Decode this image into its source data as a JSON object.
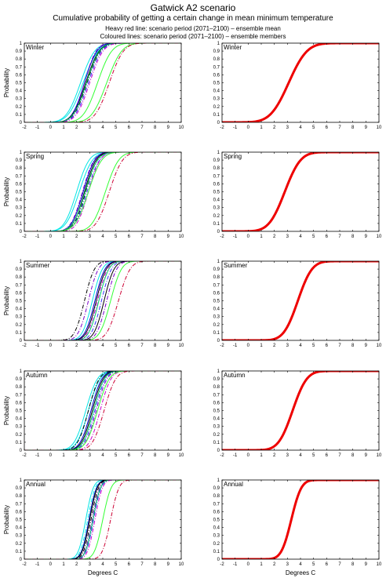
{
  "header": {
    "title": "Gatwick A2 scenario",
    "subtitle": "Cumulative probability of getting a certain change in mean minimum temperature",
    "note_line1": "Heavy red line: scenario period (2071–2100) – ensemble mean",
    "note_line2": "Coloured lines: scenario period (2071–2100) – ensemble members"
  },
  "chart_data": [
    {
      "type": "line",
      "panel": "Winter ensemble members",
      "title": "Winter",
      "xlabel": "",
      "ylabel": "Probability",
      "xlim": [
        -2,
        10
      ],
      "ylim": [
        0,
        1
      ],
      "xticks": [
        "-2",
        "-1",
        "0",
        "1",
        "2",
        "3",
        "4",
        "5",
        "6",
        "7",
        "8",
        "9",
        "10"
      ],
      "yticks": [
        "0",
        "0.1",
        "0.2",
        "0.3",
        "0.4",
        "0.5",
        "0.6",
        "0.7",
        "0.8",
        "0.9",
        "1"
      ],
      "series": [
        {
          "color": "#00e5e5",
          "dash": "solid",
          "median": 2.3,
          "spread": 0.85
        },
        {
          "color": "#00e5e5",
          "dash": "solid",
          "median": 2.5,
          "spread": 0.9
        },
        {
          "color": "#0000cc",
          "dash": "solid",
          "median": 2.6,
          "spread": 0.75
        },
        {
          "color": "#000000",
          "dash": "solid",
          "median": 2.7,
          "spread": 0.8
        },
        {
          "color": "#000000",
          "dash": "dashdot",
          "median": 2.8,
          "spread": 0.8
        },
        {
          "color": "#3333ff",
          "dash": "dashdot",
          "median": 2.9,
          "spread": 0.8
        },
        {
          "color": "#7a00cc",
          "dash": "dashdot",
          "median": 2.6,
          "spread": 0.7
        },
        {
          "color": "#00cc66",
          "dash": "solid",
          "median": 2.75,
          "spread": 0.8
        },
        {
          "color": "#cc00cc",
          "dash": "dashdot",
          "median": 3.0,
          "spread": 0.8
        },
        {
          "color": "#33ff33",
          "dash": "solid",
          "median": 3.6,
          "spread": 0.85
        },
        {
          "color": "#33ff33",
          "dash": "solid",
          "median": 4.3,
          "spread": 0.9
        },
        {
          "color": "#cc0033",
          "dash": "dashdot",
          "median": 4.5,
          "spread": 0.85
        }
      ]
    },
    {
      "type": "line",
      "panel": "Winter ensemble mean",
      "title": "Winter",
      "xlabel": "",
      "ylabel": "",
      "xlim": [
        -2,
        10
      ],
      "ylim": [
        0,
        1
      ],
      "xticks": [
        "-2",
        "-1",
        "0",
        "1",
        "2",
        "3",
        "4",
        "5",
        "6",
        "7",
        "8",
        "9",
        "10"
      ],
      "yticks": [
        "0",
        "0.1",
        "0.2",
        "0.3",
        "0.4",
        "0.5",
        "0.6",
        "0.7",
        "0.8",
        "0.9",
        "1"
      ],
      "series": [
        {
          "color": "#ee0000",
          "dash": "solid",
          "median": 3.1,
          "spread": 1.1,
          "heavy": true
        }
      ]
    },
    {
      "type": "line",
      "panel": "Spring ensemble members",
      "title": "Spring",
      "xlabel": "",
      "ylabel": "Probability",
      "xlim": [
        -2,
        10
      ],
      "ylim": [
        0,
        1
      ],
      "xticks": [
        "-2",
        "-1",
        "0",
        "1",
        "2",
        "3",
        "4",
        "5",
        "6",
        "7",
        "8",
        "9",
        "10"
      ],
      "yticks": [
        "0",
        "0.1",
        "0.2",
        "0.3",
        "0.4",
        "0.5",
        "0.6",
        "0.7",
        "0.8",
        "0.9",
        "1"
      ],
      "series": [
        {
          "color": "#00e5e5",
          "dash": "solid",
          "median": 2.0,
          "spread": 0.75
        },
        {
          "color": "#00e5e5",
          "dash": "solid",
          "median": 2.2,
          "spread": 0.8
        },
        {
          "color": "#0000cc",
          "dash": "solid",
          "median": 2.5,
          "spread": 0.7
        },
        {
          "color": "#000000",
          "dash": "solid",
          "median": 2.6,
          "spread": 0.7
        },
        {
          "color": "#000000",
          "dash": "dashdot",
          "median": 2.7,
          "spread": 0.7
        },
        {
          "color": "#3333ff",
          "dash": "dashdot",
          "median": 2.8,
          "spread": 0.75
        },
        {
          "color": "#7a00cc",
          "dash": "dashdot",
          "median": 2.45,
          "spread": 0.7
        },
        {
          "color": "#cc00cc",
          "dash": "dashdot",
          "median": 2.9,
          "spread": 0.7
        },
        {
          "color": "#00cc66",
          "dash": "solid",
          "median": 2.65,
          "spread": 0.75
        },
        {
          "color": "#33ff33",
          "dash": "solid",
          "median": 2.9,
          "spread": 0.8
        },
        {
          "color": "#33ff33",
          "dash": "solid",
          "median": 4.2,
          "spread": 0.8
        },
        {
          "color": "#cc0033",
          "dash": "dashdot",
          "median": 4.5,
          "spread": 0.8
        }
      ]
    },
    {
      "type": "line",
      "panel": "Spring ensemble mean",
      "title": "Spring",
      "xlabel": "",
      "ylabel": "",
      "xlim": [
        -2,
        10
      ],
      "ylim": [
        0,
        1
      ],
      "xticks": [
        "-2",
        "-1",
        "0",
        "1",
        "2",
        "3",
        "4",
        "5",
        "6",
        "7",
        "8",
        "9",
        "10"
      ],
      "yticks": [
        "0",
        "0.1",
        "0.2",
        "0.3",
        "0.4",
        "0.5",
        "0.6",
        "0.7",
        "0.8",
        "0.9",
        "1"
      ],
      "series": [
        {
          "color": "#ee0000",
          "dash": "solid",
          "median": 2.8,
          "spread": 0.95,
          "heavy": true
        }
      ]
    },
    {
      "type": "line",
      "panel": "Summer ensemble members",
      "title": "Summer",
      "xlabel": "",
      "ylabel": "Probability",
      "xlim": [
        -2,
        10
      ],
      "ylim": [
        0,
        1
      ],
      "xticks": [
        "-2",
        "-1",
        "0",
        "1",
        "2",
        "3",
        "4",
        "5",
        "6",
        "7",
        "8",
        "9",
        "10"
      ],
      "yticks": [
        "0",
        "0.1",
        "0.2",
        "0.3",
        "0.4",
        "0.5",
        "0.6",
        "0.7",
        "0.8",
        "0.9",
        "1"
      ],
      "series": [
        {
          "color": "#000000",
          "dash": "dashdot",
          "median": 2.6,
          "spread": 0.6
        },
        {
          "color": "#7a00cc",
          "dash": "dashdot",
          "median": 2.9,
          "spread": 0.6
        },
        {
          "color": "#00e5e5",
          "dash": "solid",
          "median": 3.2,
          "spread": 0.6
        },
        {
          "color": "#0000cc",
          "dash": "solid",
          "median": 3.4,
          "spread": 0.6
        },
        {
          "color": "#000000",
          "dash": "solid",
          "median": 3.5,
          "spread": 0.6
        },
        {
          "color": "#cc00cc",
          "dash": "dashdot",
          "median": 3.6,
          "spread": 0.6
        },
        {
          "color": "#00cc66",
          "dash": "solid",
          "median": 3.7,
          "spread": 0.6
        },
        {
          "color": "#3333ff",
          "dash": "dashdot",
          "median": 3.9,
          "spread": 0.6
        },
        {
          "color": "#000000",
          "dash": "solid",
          "median": 4.1,
          "spread": 0.6
        },
        {
          "color": "#7a00cc",
          "dash": "dashdot",
          "median": 4.3,
          "spread": 0.6
        },
        {
          "color": "#33ff33",
          "dash": "solid",
          "median": 4.6,
          "spread": 0.65
        },
        {
          "color": "#cc0033",
          "dash": "dashdot",
          "median": 5.2,
          "spread": 0.7
        }
      ]
    },
    {
      "type": "line",
      "panel": "Summer ensemble mean",
      "title": "Summer",
      "xlabel": "",
      "ylabel": "",
      "xlim": [
        -2,
        10
      ],
      "ylim": [
        0,
        1
      ],
      "xticks": [
        "-2",
        "-1",
        "0",
        "1",
        "2",
        "3",
        "4",
        "5",
        "6",
        "7",
        "8",
        "9",
        "10"
      ],
      "yticks": [
        "0",
        "0.1",
        "0.2",
        "0.3",
        "0.4",
        "0.5",
        "0.6",
        "0.7",
        "0.8",
        "0.9",
        "1"
      ],
      "series": [
        {
          "color": "#ee0000",
          "dash": "solid",
          "median": 3.8,
          "spread": 0.85,
          "heavy": true
        }
      ]
    },
    {
      "type": "line",
      "panel": "Autumn ensemble members",
      "title": "Autumn",
      "xlabel": "",
      "ylabel": "Probability",
      "xlim": [
        -2,
        10
      ],
      "ylim": [
        0,
        1
      ],
      "xticks": [
        "-2",
        "-1",
        "0",
        "1",
        "2",
        "3",
        "4",
        "5",
        "6",
        "7",
        "8",
        "9",
        "10"
      ],
      "yticks": [
        "0",
        "0.1",
        "0.2",
        "0.3",
        "0.4",
        "0.5",
        "0.6",
        "0.7",
        "0.8",
        "0.9",
        "1"
      ],
      "series": [
        {
          "color": "#00e5e5",
          "dash": "solid",
          "median": 2.7,
          "spread": 0.7
        },
        {
          "color": "#00e5e5",
          "dash": "solid",
          "median": 2.9,
          "spread": 0.7
        },
        {
          "color": "#000000",
          "dash": "dashdot",
          "median": 2.9,
          "spread": 0.65
        },
        {
          "color": "#0000cc",
          "dash": "solid",
          "median": 3.1,
          "spread": 0.65
        },
        {
          "color": "#000000",
          "dash": "solid",
          "median": 3.2,
          "spread": 0.65
        },
        {
          "color": "#3333ff",
          "dash": "dashdot",
          "median": 3.4,
          "spread": 0.65
        },
        {
          "color": "#7a00cc",
          "dash": "dashdot",
          "median": 3.5,
          "spread": 0.65
        },
        {
          "color": "#00cc66",
          "dash": "solid",
          "median": 3.3,
          "spread": 0.65
        },
        {
          "color": "#cc00cc",
          "dash": "dashdot",
          "median": 3.8,
          "spread": 0.65
        },
        {
          "color": "#33ff33",
          "dash": "solid",
          "median": 3.6,
          "spread": 0.7
        },
        {
          "color": "#cc0033",
          "dash": "dashdot",
          "median": 4.1,
          "spread": 0.7
        }
      ]
    },
    {
      "type": "line",
      "panel": "Autumn ensemble mean",
      "title": "Autumn",
      "xlabel": "",
      "ylabel": "",
      "xlim": [
        -2,
        10
      ],
      "ylim": [
        0,
        1
      ],
      "xticks": [
        "-2",
        "-1",
        "0",
        "1",
        "2",
        "3",
        "4",
        "5",
        "6",
        "7",
        "8",
        "9",
        "10"
      ],
      "yticks": [
        "0",
        "0.1",
        "0.2",
        "0.3",
        "0.4",
        "0.5",
        "0.6",
        "0.7",
        "0.8",
        "0.9",
        "1"
      ],
      "series": [
        {
          "color": "#ee0000",
          "dash": "solid",
          "median": 3.4,
          "spread": 0.85,
          "heavy": true
        }
      ]
    },
    {
      "type": "line",
      "panel": "Annual ensemble members",
      "title": "Annual",
      "xlabel": "Degrees C",
      "ylabel": "Probability",
      "xlim": [
        -2,
        10
      ],
      "ylim": [
        0,
        1
      ],
      "xticks": [
        "-2",
        "-1",
        "0",
        "1",
        "2",
        "3",
        "4",
        "5",
        "6",
        "7",
        "8",
        "9",
        "10"
      ],
      "yticks": [
        "0",
        "0.1",
        "0.2",
        "0.3",
        "0.4",
        "0.5",
        "0.6",
        "0.7",
        "0.8",
        "0.9",
        "1"
      ],
      "series": [
        {
          "color": "#00e5e5",
          "dash": "solid",
          "median": 2.7,
          "spread": 0.45
        },
        {
          "color": "#00e5e5",
          "dash": "dashdot",
          "median": 2.85,
          "spread": 0.45
        },
        {
          "color": "#0000cc",
          "dash": "solid",
          "median": 2.95,
          "spread": 0.45
        },
        {
          "color": "#000000",
          "dash": "solid",
          "median": 3.0,
          "spread": 0.45
        },
        {
          "color": "#000000",
          "dash": "dashdot",
          "median": 3.1,
          "spread": 0.45
        },
        {
          "color": "#7a00cc",
          "dash": "dashdot",
          "median": 3.2,
          "spread": 0.45
        },
        {
          "color": "#3333ff",
          "dash": "dashdot",
          "median": 3.3,
          "spread": 0.45
        },
        {
          "color": "#00cc66",
          "dash": "solid",
          "median": 3.25,
          "spread": 0.45
        },
        {
          "color": "#cc00cc",
          "dash": "dashdot",
          "median": 3.4,
          "spread": 0.45
        },
        {
          "color": "#33ff33",
          "dash": "solid",
          "median": 4.0,
          "spread": 0.5
        },
        {
          "color": "#cc0033",
          "dash": "dashdot",
          "median": 4.6,
          "spread": 0.5
        }
      ]
    },
    {
      "type": "line",
      "panel": "Annual ensemble mean",
      "title": "Annual",
      "xlabel": "Degrees C",
      "ylabel": "",
      "xlim": [
        -2,
        10
      ],
      "ylim": [
        0,
        1
      ],
      "xticks": [
        "-2",
        "-1",
        "0",
        "1",
        "2",
        "3",
        "4",
        "5",
        "6",
        "7",
        "8",
        "9",
        "10"
      ],
      "yticks": [
        "0",
        "0.1",
        "0.2",
        "0.3",
        "0.4",
        "0.5",
        "0.6",
        "0.7",
        "0.8",
        "0.9",
        "1"
      ],
      "series": [
        {
          "color": "#ee0000",
          "dash": "solid",
          "median": 3.3,
          "spread": 0.6,
          "heavy": true
        }
      ]
    }
  ]
}
